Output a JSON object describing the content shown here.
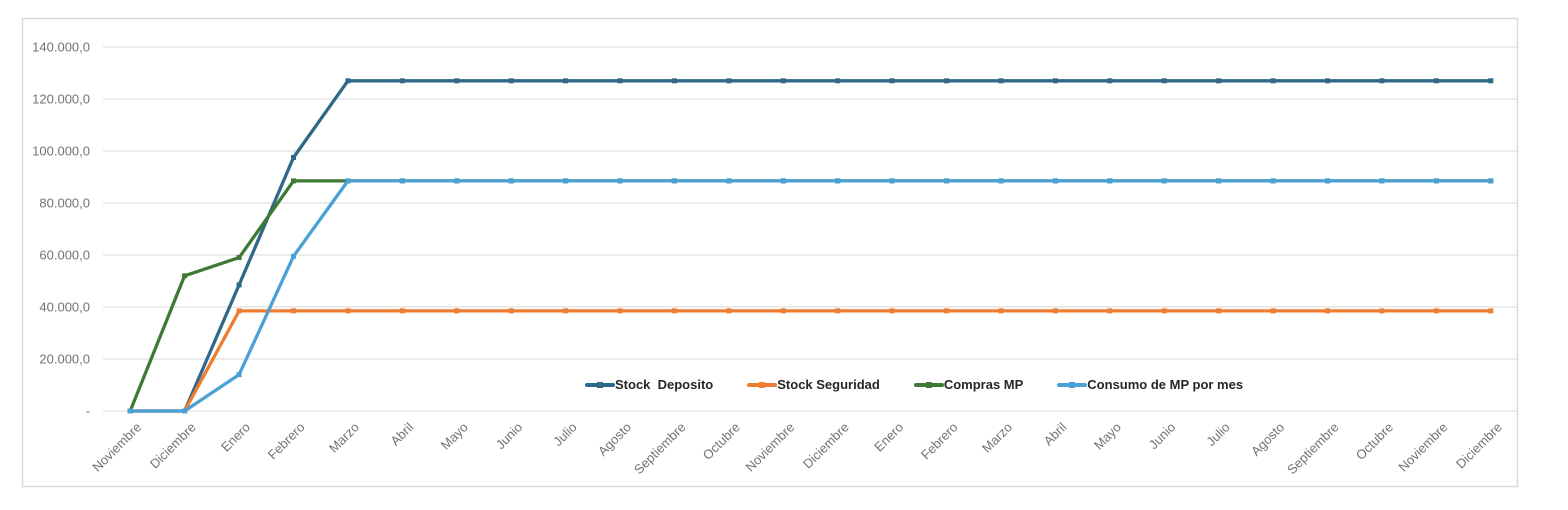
{
  "chart_data": {
    "type": "line",
    "title": "",
    "categories": [
      "Noviembre",
      "Diciembre",
      "Enero",
      "Febrero",
      "Marzo",
      "Abril",
      "Mayo",
      "Junio",
      "Julio",
      "Agosto",
      "Septiembre",
      "Octubre",
      "Noviembre",
      "Diciembre",
      "Enero",
      "Febrero",
      "Marzo",
      "Abril",
      "Mayo",
      "Junio",
      "Julio",
      "Agosto",
      "Septiembre",
      "Octubre",
      "Noviembre",
      "Diciembre"
    ],
    "series": [
      {
        "name": "Stock  Deposito",
        "color": "#2F6888",
        "values": [
          0,
          0,
          48500,
          97500,
          127000,
          127000,
          127000,
          127000,
          127000,
          127000,
          127000,
          127000,
          127000,
          127000,
          127000,
          127000,
          127000,
          127000,
          127000,
          127000,
          127000,
          127000,
          127000,
          127000,
          127000,
          127000
        ]
      },
      {
        "name": "Stock Seguridad",
        "color": "#ED7D31",
        "values": [
          0,
          0,
          38500,
          38500,
          38500,
          38500,
          38500,
          38500,
          38500,
          38500,
          38500,
          38500,
          38500,
          38500,
          38500,
          38500,
          38500,
          38500,
          38500,
          38500,
          38500,
          38500,
          38500,
          38500,
          38500,
          38500
        ]
      },
      {
        "name": "Compras MP",
        "color": "#3E7A33",
        "values": [
          0,
          52000,
          59000,
          88500,
          88500,
          88500,
          88500,
          88500,
          88500,
          88500,
          88500,
          88500,
          88500,
          88500,
          88500,
          88500,
          88500,
          88500,
          88500,
          88500,
          88500,
          88500,
          88500,
          88500,
          88500,
          88500
        ]
      },
      {
        "name": "Consumo de MP por mes",
        "color": "#4BA1D5",
        "values": [
          0,
          0,
          14000,
          59500,
          88500,
          88500,
          88500,
          88500,
          88500,
          88500,
          88500,
          88500,
          88500,
          88500,
          88500,
          88500,
          88500,
          88500,
          88500,
          88500,
          88500,
          88500,
          88500,
          88500,
          88500,
          88500
        ]
      }
    ],
    "y_axis": {
      "min": 0,
      "max": 140000,
      "step": 20000,
      "tick_labels_bottom_up": [
        "-",
        "20.000,0",
        "40.000,0",
        "60.000,0",
        "80.000,0",
        "100.000,0",
        "120.000,0",
        "140.000,0"
      ]
    },
    "x_axis": {
      "label_rotation_deg": -45
    },
    "grid": true,
    "legend_position": "inside-bottom-center",
    "colors": {
      "gridline": "#D9D9D9",
      "frame": "#D9D9D9",
      "axis_text": "#737373",
      "legend_text": "#262626",
      "background": "#FFFFFF"
    }
  }
}
